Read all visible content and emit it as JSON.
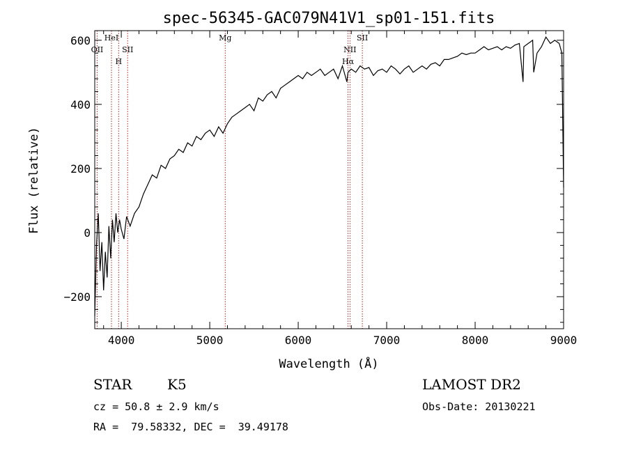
{
  "chart_data": {
    "type": "line",
    "title": "spec-56345-GAC079N41V1_sp01-151.fits",
    "xlabel": "Wavelength (Å)",
    "ylabel": "Flux (relative)",
    "xlim": [
      3700,
      9000
    ],
    "ylim": [
      -300,
      630
    ],
    "x_ticks": [
      4000,
      5000,
      6000,
      7000,
      8000,
      9000
    ],
    "y_ticks": [
      -200,
      0,
      200,
      400,
      600
    ],
    "grid": false,
    "line_color": "#000000",
    "marker_color": "#b22222",
    "series": [
      {
        "x": [
          3700,
          3720,
          3740,
          3760,
          3780,
          3800,
          3820,
          3840,
          3860,
          3880,
          3900,
          3920,
          3940,
          3960,
          3980,
          4000,
          4030,
          4060,
          4100,
          4150,
          4200,
          4250,
          4300,
          4350,
          4400,
          4450,
          4500,
          4550,
          4600,
          4650,
          4700,
          4750,
          4800,
          4850,
          4900,
          4950,
          5000,
          5050,
          5100,
          5150,
          5200,
          5250,
          5300,
          5350,
          5400,
          5450,
          5500,
          5550,
          5600,
          5650,
          5700,
          5750,
          5800,
          5850,
          5900,
          5950,
          6000,
          6050,
          6100,
          6150,
          6200,
          6250,
          6300,
          6350,
          6400,
          6450,
          6500,
          6550,
          6563,
          6600,
          6650,
          6700,
          6750,
          6800,
          6850,
          6900,
          6950,
          7000,
          7050,
          7100,
          7150,
          7200,
          7250,
          7300,
          7350,
          7400,
          7450,
          7500,
          7550,
          7600,
          7650,
          7700,
          7750,
          7800,
          7850,
          7900,
          7950,
          8000,
          8050,
          8100,
          8150,
          8200,
          8250,
          8300,
          8350,
          8400,
          8450,
          8500,
          8542,
          8550,
          8600,
          8650,
          8662,
          8700,
          8750,
          8800,
          8850,
          8900,
          8950,
          8980,
          9000
        ],
        "y": [
          -260,
          -40,
          60,
          -120,
          -30,
          -180,
          -60,
          -140,
          20,
          -80,
          40,
          -30,
          60,
          0,
          40,
          10,
          -20,
          50,
          20,
          60,
          80,
          120,
          150,
          180,
          170,
          210,
          200,
          230,
          240,
          260,
          250,
          280,
          270,
          300,
          290,
          310,
          320,
          300,
          330,
          310,
          340,
          360,
          370,
          380,
          390,
          400,
          380,
          420,
          410,
          430,
          440,
          420,
          450,
          460,
          470,
          480,
          490,
          480,
          500,
          490,
          500,
          510,
          490,
          500,
          510,
          480,
          520,
          470,
          500,
          510,
          500,
          520,
          510,
          515,
          490,
          505,
          510,
          500,
          520,
          510,
          495,
          510,
          520,
          500,
          510,
          520,
          510,
          525,
          530,
          520,
          540,
          540,
          545,
          550,
          560,
          555,
          560,
          560,
          570,
          580,
          570,
          575,
          580,
          570,
          580,
          575,
          585,
          590,
          470,
          580,
          590,
          600,
          500,
          560,
          580,
          610,
          590,
          600,
          590,
          560,
          140
        ]
      }
    ],
    "line_markers": [
      {
        "label": "OII",
        "x": 3727
      },
      {
        "label": "HeI",
        "x": 3889
      },
      {
        "label": "H",
        "x": 3970
      },
      {
        "label": "SII",
        "x": 4072
      },
      {
        "label": "Mg",
        "x": 5175
      },
      {
        "label": "NII",
        "x": 6585
      },
      {
        "label": "Hα",
        "x": 6563
      },
      {
        "label": "SII",
        "x": 6725
      }
    ]
  },
  "info": {
    "object_class": "STAR",
    "subclass": "K5",
    "survey": "LAMOST DR2",
    "redshift_text": "cz = 50.8 ± 2.9 km/s",
    "obs_date_text": "Obs-Date: 20130221",
    "coords_text": "RA =  79.58332, DEC =  39.49178"
  }
}
